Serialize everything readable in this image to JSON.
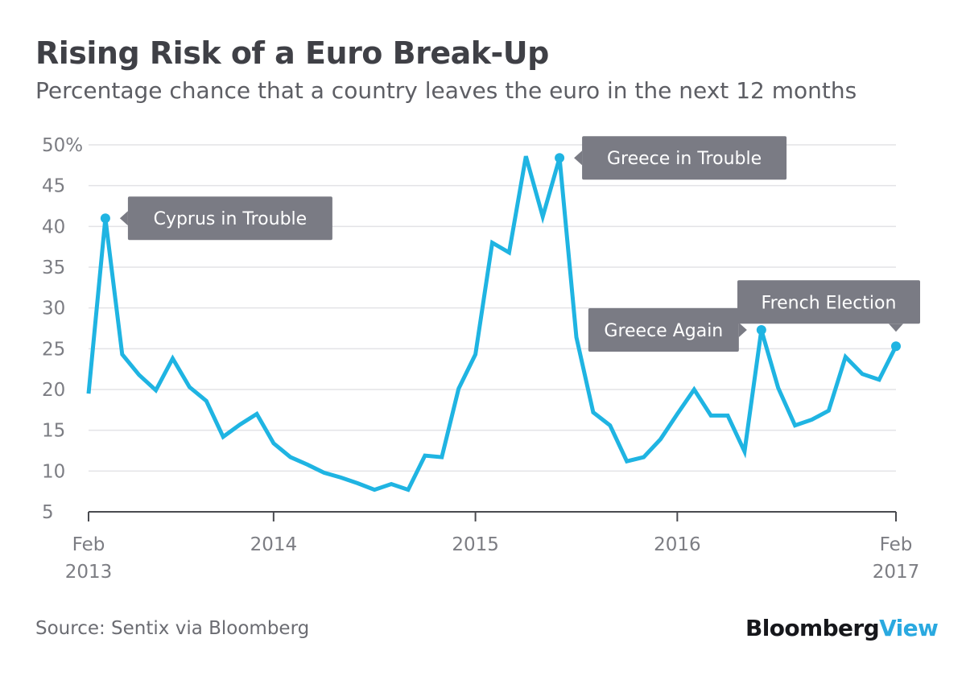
{
  "chart_data": {
    "type": "line",
    "title": "Rising Risk of a Euro Break-Up",
    "subtitle": "Percentage chance that a country leaves the euro in the next 12 months",
    "xlabel": "",
    "ylabel": "",
    "ylim": [
      5,
      50
    ],
    "yticks": [
      5,
      10,
      15,
      20,
      25,
      30,
      35,
      40,
      45,
      50
    ],
    "ytick_labels": [
      "5",
      "10",
      "15",
      "20",
      "25",
      "30",
      "35",
      "40",
      "45",
      "50%"
    ],
    "xlim": [
      "2013-02",
      "2017-02"
    ],
    "xticks": [
      {
        "x": "2013-02",
        "lines": [
          "Feb",
          "2013"
        ]
      },
      {
        "x": "2014-01",
        "lines": [
          "2014"
        ]
      },
      {
        "x": "2015-01",
        "lines": [
          "2015"
        ]
      },
      {
        "x": "2016-01",
        "lines": [
          "2016"
        ]
      },
      {
        "x": "2017-02",
        "lines": [
          "Feb",
          "2017"
        ]
      }
    ],
    "grid": true,
    "line_color": "#1fb4e2",
    "series": [
      {
        "x": [
          "2013-02",
          "2013-03",
          "2013-04",
          "2013-05",
          "2013-06",
          "2013-07",
          "2013-08",
          "2013-09",
          "2013-10",
          "2013-11",
          "2013-12",
          "2014-01",
          "2014-02",
          "2014-03",
          "2014-04",
          "2014-05",
          "2014-06",
          "2014-07",
          "2014-08",
          "2014-09",
          "2014-10",
          "2014-11",
          "2014-12",
          "2015-01",
          "2015-02",
          "2015-03",
          "2015-04",
          "2015-05",
          "2015-06",
          "2015-07",
          "2015-08",
          "2015-09",
          "2015-10",
          "2015-11",
          "2015-12",
          "2016-01",
          "2016-02",
          "2016-03",
          "2016-04",
          "2016-05",
          "2016-06",
          "2016-07",
          "2016-08",
          "2016-09",
          "2016-10",
          "2016-11",
          "2016-12",
          "2017-01",
          "2017-02"
        ],
        "values": [
          19.5,
          41.0,
          24.3,
          21.8,
          19.9,
          23.8,
          20.3,
          18.6,
          14.2,
          15.7,
          17.0,
          13.4,
          11.7,
          10.8,
          9.8,
          9.2,
          8.5,
          7.7,
          8.4,
          7.7,
          11.9,
          11.7,
          20.1,
          24.3,
          38.0,
          36.8,
          48.6,
          41.2,
          48.4,
          26.4,
          17.2,
          15.6,
          11.2,
          11.7,
          13.9,
          17.0,
          20.0,
          16.8,
          16.8,
          12.4,
          27.3,
          20.2,
          15.6,
          16.3,
          17.4,
          24.0,
          21.9,
          21.2,
          25.3
        ]
      }
    ],
    "annotations": [
      {
        "text": "Cyprus in Trouble",
        "x": "2013-03",
        "y": 41.0,
        "side": "right"
      },
      {
        "text": "Greece in Trouble",
        "x": "2015-06",
        "y": 48.4,
        "side": "right"
      },
      {
        "text": "Greece Again",
        "x": "2016-06",
        "y": 27.3,
        "side": "left"
      },
      {
        "text": "French Election",
        "x": "2017-02",
        "y": 25.3,
        "side": "above"
      }
    ]
  },
  "footer": {
    "source": "Source: Sentix via Bloomberg",
    "logo_primary": "Bloomberg",
    "logo_secondary": "View"
  }
}
